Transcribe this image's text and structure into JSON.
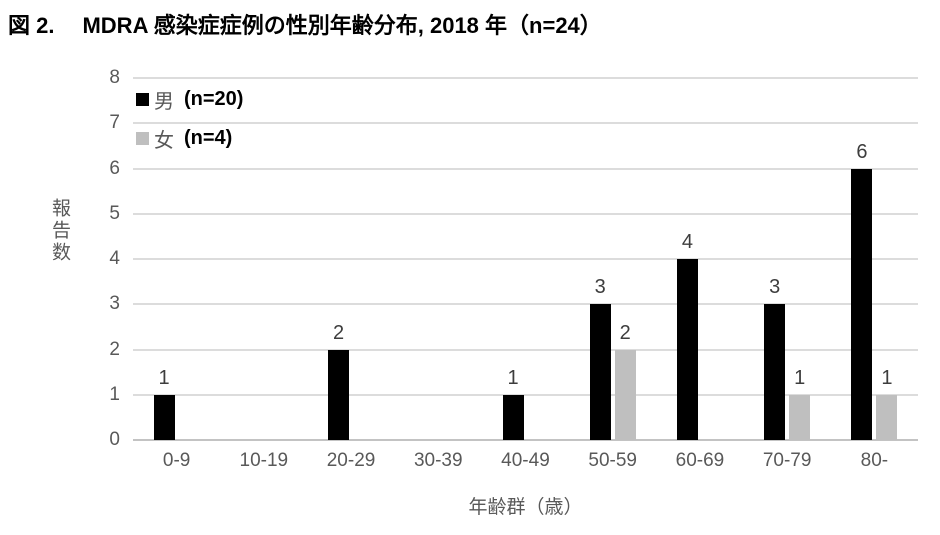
{
  "title": {
    "prefix": "図 2.",
    "text": "MDRA 感染症症例の性別年齢分布, 2018 年（n=24）"
  },
  "legend": [
    {
      "label": "男",
      "count_label": "(n=20)",
      "color": "#000000"
    },
    {
      "label": "女",
      "count_label": "(n=4)",
      "color": "#bfbfbf"
    }
  ],
  "chart_data": {
    "type": "bar",
    "title": "図 2. MDRA 感染症症例の性別年齢分布, 2018 年（n=24）",
    "categories": [
      "0-9",
      "10-19",
      "20-29",
      "30-39",
      "40-49",
      "50-59",
      "60-69",
      "70-79",
      "80-"
    ],
    "series": [
      {
        "name": "男 (n=20)",
        "color": "#000000",
        "values": [
          1,
          0,
          2,
          0,
          1,
          3,
          4,
          3,
          6
        ]
      },
      {
        "name": "女 (n=4)",
        "color": "#bfbfbf",
        "values": [
          0,
          0,
          0,
          0,
          0,
          2,
          0,
          1,
          1
        ]
      }
    ],
    "xlabel": "年齢群（歳）",
    "ylabel": "報告数",
    "ylim": [
      0,
      8
    ],
    "ytick_step": 1,
    "grid": true,
    "data_labels": true,
    "legend_position": "top-left-inside",
    "colors": {
      "gridline": "#dcdcdc",
      "baseline": "#c3c3c3",
      "tick_label": "#595959",
      "data_label": "#3d3d3d"
    }
  }
}
